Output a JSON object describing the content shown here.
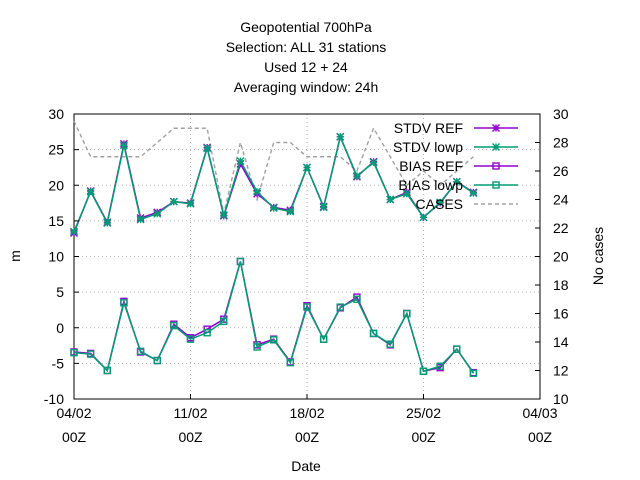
{
  "chart_data": {
    "type": "line",
    "title_lines": [
      "Geopotential 700hPa",
      "Selection: ALL     31 stations",
      "Used  12  + 24",
      "Averaging window: 24h"
    ],
    "xlabel": "Date",
    "ylabel": "m",
    "y2label": "No cases",
    "ylim": [
      -10,
      30
    ],
    "y2lim": [
      10,
      30
    ],
    "xlim": [
      0,
      28
    ],
    "yticks": [
      "-10",
      "-5",
      "0",
      "5",
      "10",
      "15",
      "20",
      "25",
      "30"
    ],
    "y2ticks": [
      "10",
      "12",
      "14",
      "16",
      "18",
      "20",
      "22",
      "24",
      "26",
      "28",
      "30"
    ],
    "xticks": [
      {
        "x": 0,
        "l1": "04/02",
        "l2": "00Z"
      },
      {
        "x": 7,
        "l1": "11/02",
        "l2": "00Z"
      },
      {
        "x": 14,
        "l1": "18/02",
        "l2": "00Z"
      },
      {
        "x": 21,
        "l1": "25/02",
        "l2": "00Z"
      },
      {
        "x": 28,
        "l1": "04/03",
        "l2": "00Z"
      }
    ],
    "grid": true,
    "legend_position": "top-right",
    "x": [
      0,
      1,
      2,
      3,
      4,
      5,
      6,
      7,
      8,
      9,
      10,
      11,
      12,
      13,
      14,
      15,
      16,
      17,
      18,
      19,
      20,
      21,
      22,
      23,
      24,
      25
    ],
    "series": [
      {
        "name": "STDV REF",
        "color": "#9400d3",
        "marker": "star",
        "dash": "",
        "axis": "y",
        "values": [
          13.3,
          19.2,
          14.8,
          25.8,
          15.4,
          16.2,
          17.7,
          17.5,
          25.3,
          15.7,
          23.0,
          18.8,
          16.9,
          16.5,
          22.5,
          17.0,
          26.8,
          21.2,
          23.3,
          18.0,
          19.0,
          15.5,
          17.5,
          20.5,
          19.0,
          null
        ]
      },
      {
        "name": "STDV lowp",
        "color": "#009e73",
        "marker": "star",
        "dash": "",
        "axis": "y",
        "values": [
          13.5,
          19.1,
          14.7,
          25.6,
          15.2,
          16.0,
          17.7,
          17.4,
          25.2,
          15.8,
          23.4,
          19.1,
          16.8,
          16.3,
          22.5,
          16.9,
          26.8,
          21.3,
          23.2,
          18.0,
          18.8,
          15.5,
          17.6,
          20.5,
          18.9,
          null
        ]
      },
      {
        "name": "BIAS REF",
        "color": "#9400d3",
        "marker": "square",
        "dash": "",
        "axis": "y",
        "values": [
          -3.4,
          -3.6,
          -6.0,
          3.7,
          -3.4,
          -4.6,
          0.5,
          -1.4,
          -0.2,
          1.2,
          9.3,
          -2.4,
          -1.6,
          -4.8,
          3.1,
          -1.6,
          2.8,
          4.3,
          -0.8,
          -2.4,
          2.0,
          -6.1,
          -5.6,
          -3.0,
          -6.3,
          null
        ]
      },
      {
        "name": "BIAS lowp",
        "color": "#009e73",
        "marker": "square",
        "dash": "",
        "axis": "y",
        "values": [
          -3.5,
          -3.7,
          -6.0,
          3.5,
          -3.3,
          -4.6,
          0.3,
          -1.6,
          -0.7,
          0.9,
          9.3,
          -2.7,
          -1.7,
          -4.9,
          2.9,
          -1.6,
          2.9,
          4.0,
          -0.8,
          -2.3,
          2.0,
          -6.1,
          -5.4,
          -3.0,
          -6.4,
          null
        ]
      },
      {
        "name": "CASES",
        "color": "#a0a0a0",
        "marker": "",
        "dash": "4,3",
        "axis": "y2",
        "values": [
          29.5,
          27.0,
          27.0,
          27.0,
          27.0,
          28.0,
          29.0,
          29.0,
          29.0,
          23.0,
          28.0,
          24.0,
          28.0,
          28.0,
          27.0,
          27.0,
          27.0,
          26.0,
          29.0,
          27.0,
          25.0,
          26.0,
          25.0,
          26.0,
          27.0,
          null
        ]
      }
    ]
  }
}
